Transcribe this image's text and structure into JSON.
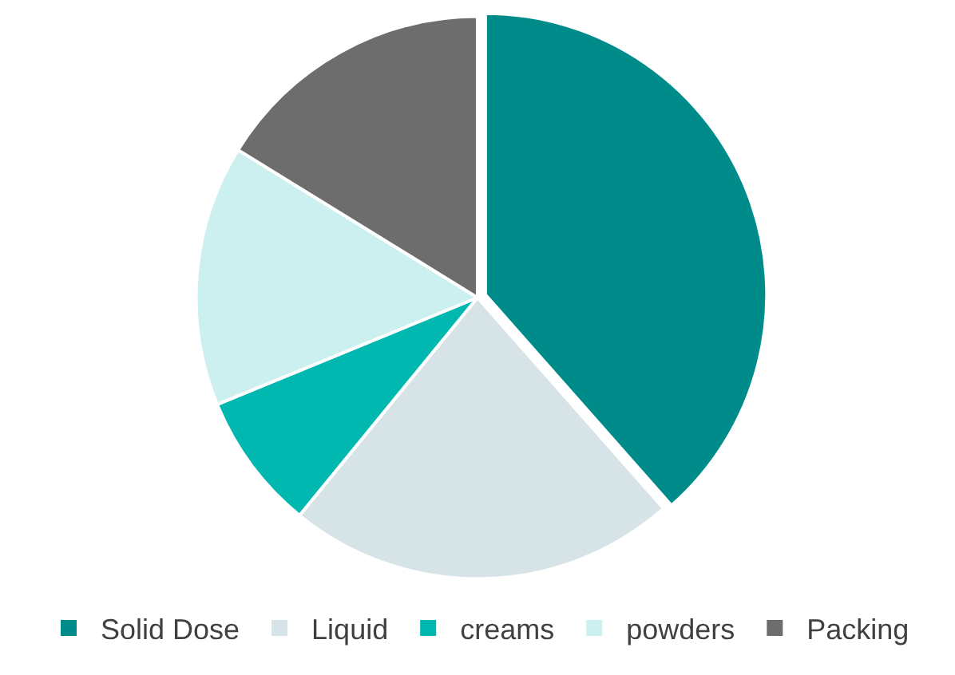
{
  "chart_data": {
    "type": "pie",
    "categories": [
      "Solid Dose",
      "Liquid",
      "creams",
      "powders",
      "Packing"
    ],
    "values": [
      38.5,
      22.4,
      7.9,
      15,
      16.2
    ],
    "colors": [
      "#008b8b",
      "#d6e4e8",
      "#00b8b0",
      "#ccefef",
      "#6d6d6d"
    ],
    "legend": "bottom"
  }
}
